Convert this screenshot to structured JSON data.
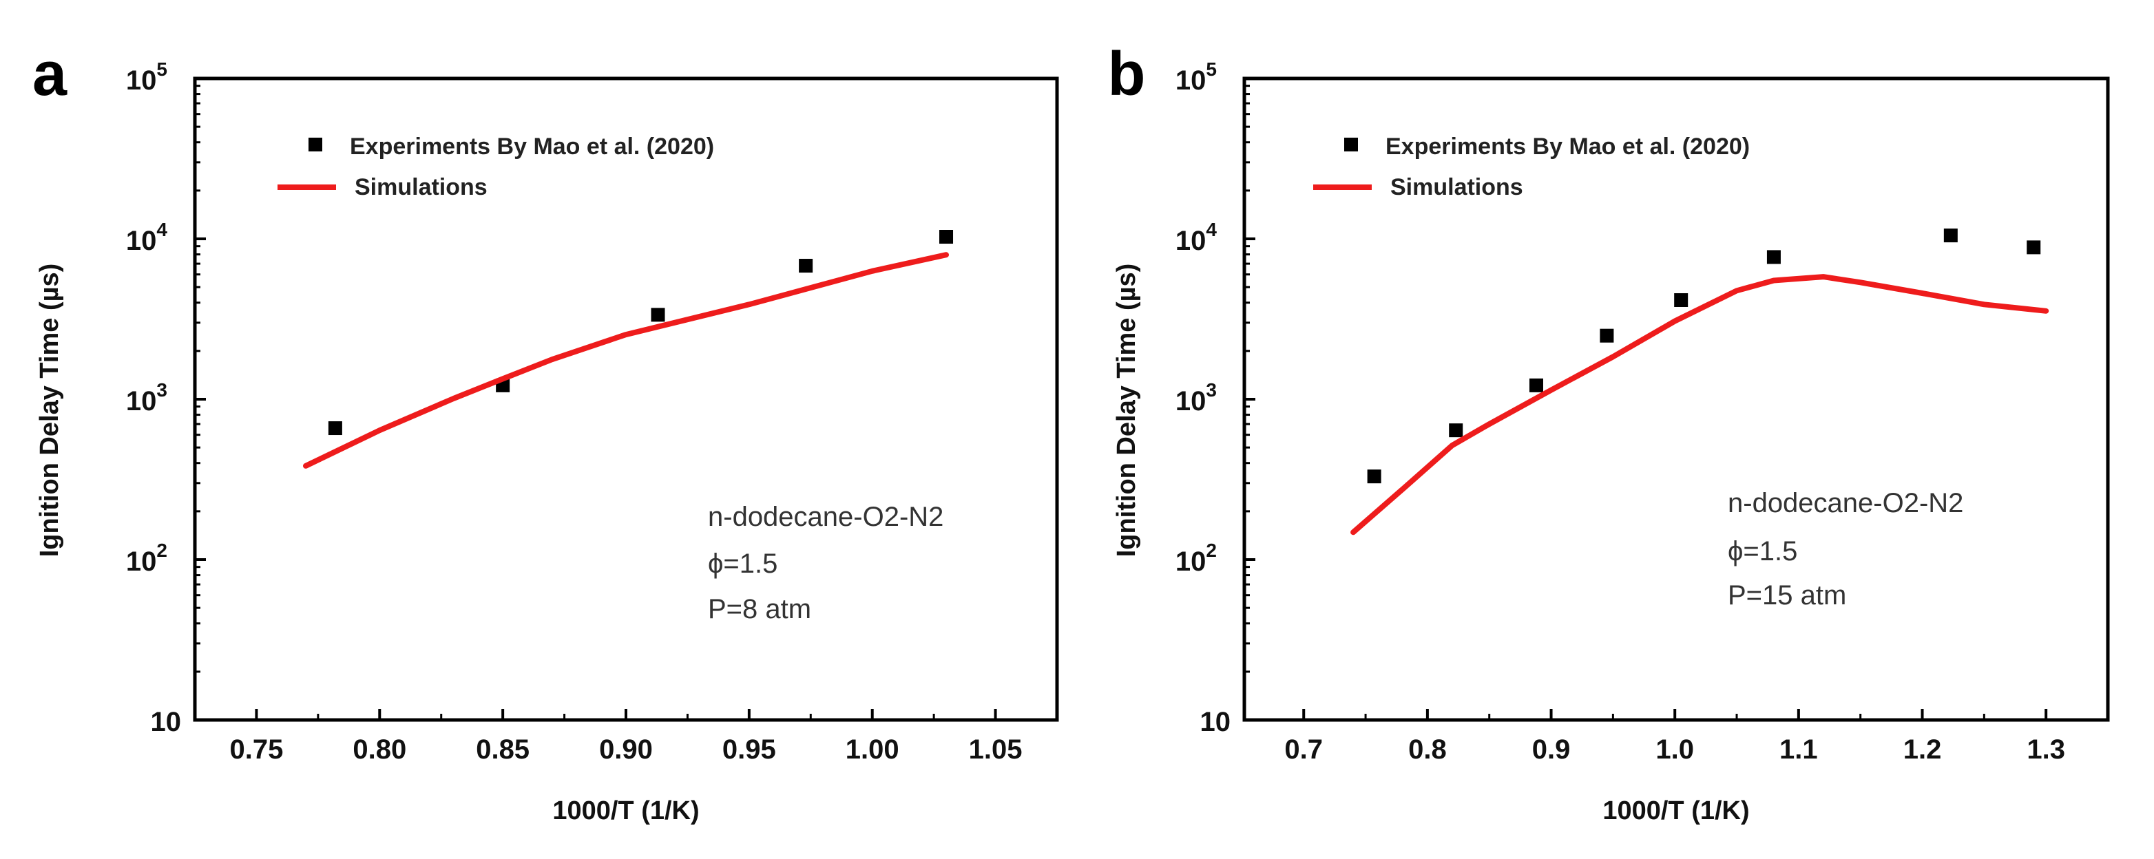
{
  "chart_data": [
    {
      "type": "scatter",
      "panel_label": "a",
      "xlabel": "1000/T (1/K)",
      "ylabel": "Ignition Delay Time (µs)",
      "yscale": "log",
      "xlim": [
        0.725,
        1.075
      ],
      "ylim": [
        10,
        100000
      ],
      "xticks": [
        0.75,
        0.8,
        0.85,
        0.9,
        0.95,
        1.0,
        1.05
      ],
      "xtick_labels": [
        "0.75",
        "0.80",
        "0.85",
        "0.90",
        "0.95",
        "1.00",
        "1.05"
      ],
      "yticks": [
        10,
        100,
        1000,
        10000,
        100000
      ],
      "ytick_labels": [
        {
          "base": "10",
          "exp": ""
        },
        {
          "base": "10",
          "exp": "2"
        },
        {
          "base": "10",
          "exp": "3"
        },
        {
          "base": "10",
          "exp": "4"
        },
        {
          "base": "10",
          "exp": "5"
        }
      ],
      "legend": {
        "position": "top-left",
        "experiments": "Experiments By Mao et al. (2020)",
        "simulations": "Simulations"
      },
      "annotation": [
        "n-dodecane-O2-N2",
        "ϕ=1.5",
        "P=8 atm"
      ],
      "series": [
        {
          "name": "Experiments By Mao et al. (2020)",
          "kind": "points",
          "color": "#000000",
          "x": [
            0.782,
            0.85,
            0.913,
            0.973,
            1.03
          ],
          "y": [
            660,
            1220,
            3360,
            6800,
            10300
          ]
        },
        {
          "name": "Simulations",
          "kind": "line",
          "color": "#ee1c1c",
          "x": [
            0.77,
            0.8,
            0.83,
            0.85,
            0.87,
            0.9,
            0.95,
            1.0,
            1.03
          ],
          "y": [
            384,
            640,
            1010,
            1340,
            1770,
            2530,
            3900,
            6300,
            7950
          ]
        }
      ]
    },
    {
      "type": "scatter",
      "panel_label": "b",
      "xlabel": "1000/T (1/K)",
      "ylabel": "Ignition Delay Time (µs)",
      "yscale": "log",
      "xlim": [
        0.652,
        1.35
      ],
      "ylim": [
        10,
        100000
      ],
      "xticks": [
        0.7,
        0.8,
        0.9,
        1.0,
        1.1,
        1.2,
        1.3
      ],
      "xtick_labels": [
        "0.7",
        "0.8",
        "0.9",
        "1.0",
        "1.1",
        "1.2",
        "1.3"
      ],
      "yticks": [
        10,
        100,
        1000,
        10000,
        100000
      ],
      "ytick_labels": [
        {
          "base": "10",
          "exp": ""
        },
        {
          "base": "10",
          "exp": "2"
        },
        {
          "base": "10",
          "exp": "3"
        },
        {
          "base": "10",
          "exp": "4"
        },
        {
          "base": "10",
          "exp": "5"
        }
      ],
      "legend": {
        "position": "top-left",
        "experiments": "Experiments By Mao et al. (2020)",
        "simulations": "Simulations"
      },
      "annotation": [
        "n-dodecane-O2-N2",
        "ϕ=1.5",
        "P=15 atm"
      ],
      "series": [
        {
          "name": "Experiments By Mao et al. (2020)",
          "kind": "points",
          "color": "#000000",
          "x": [
            0.757,
            0.823,
            0.888,
            0.945,
            1.005,
            1.08,
            1.223,
            1.29
          ],
          "y": [
            330,
            640,
            1220,
            2490,
            4150,
            7700,
            10500,
            8850
          ]
        },
        {
          "name": "Simulations",
          "kind": "line",
          "color": "#ee1c1c",
          "x": [
            0.74,
            0.78,
            0.82,
            0.85,
            0.9,
            0.95,
            1.0,
            1.05,
            1.08,
            1.12,
            1.15,
            1.2,
            1.25,
            1.3
          ],
          "y": [
            148,
            275,
            515,
            700,
            1140,
            1840,
            3070,
            4750,
            5500,
            5800,
            5350,
            4580,
            3900,
            3550
          ]
        }
      ]
    }
  ]
}
